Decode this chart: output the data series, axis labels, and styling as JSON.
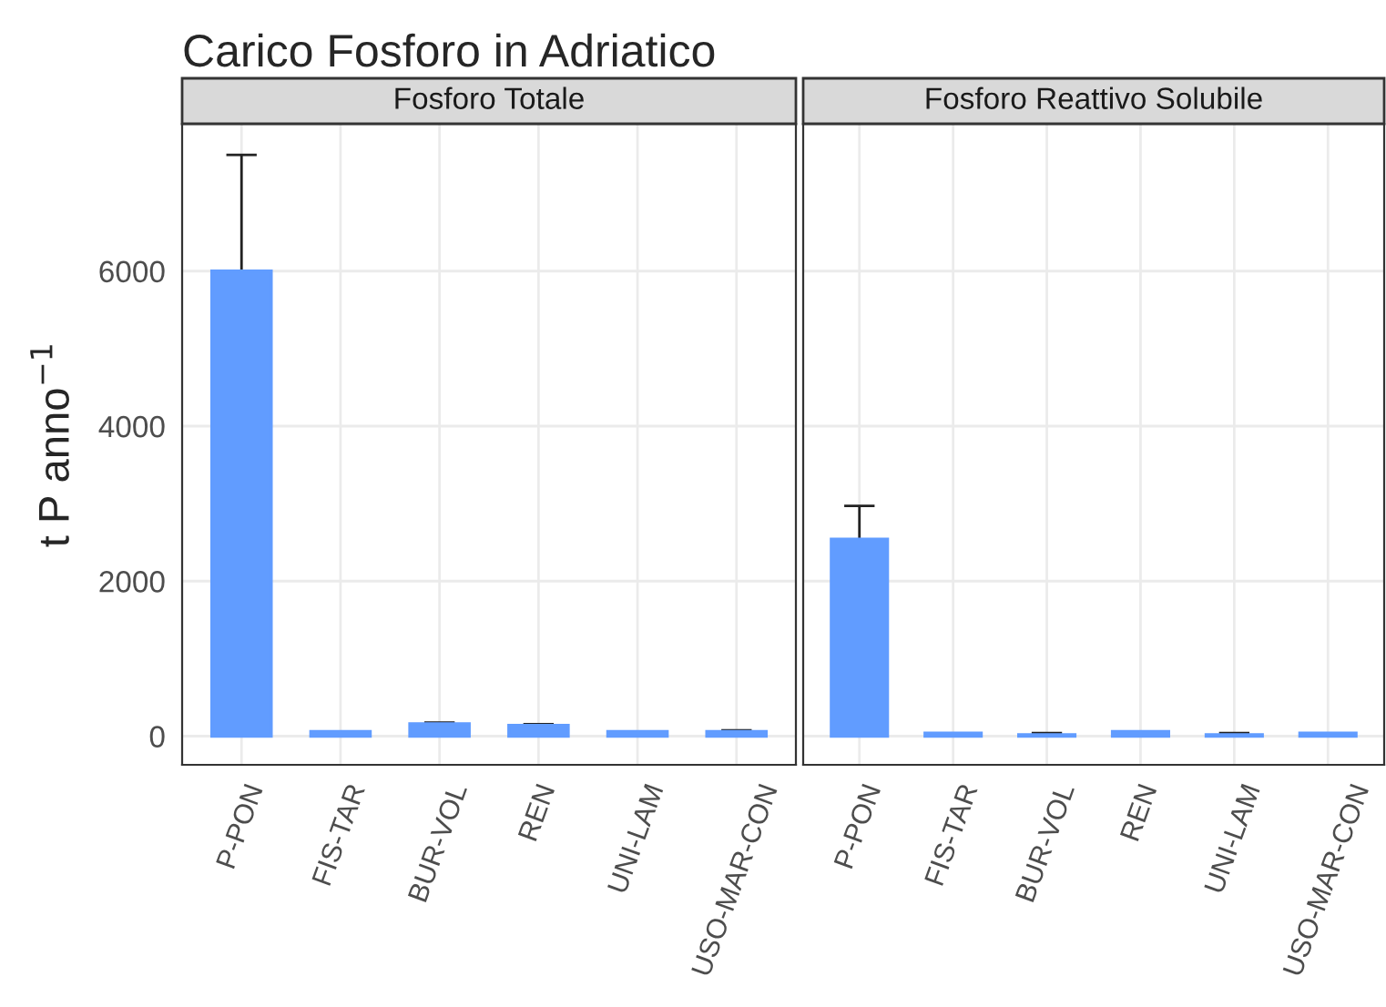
{
  "chart_data": [
    {
      "type": "bar",
      "title": "Carico Fosforo in Adriatico",
      "subtitle": "Fosforo Totale",
      "ylabel": "t P anno$^{−1}$",
      "categories": [
        "P-PON",
        "FIS-TAR",
        "BUR-VOL",
        "REN",
        "UNI-LAM",
        "USO-MAR-CON"
      ],
      "values": [
        6000,
        60,
        160,
        140,
        60,
        60
      ],
      "errors": [
        1500,
        null,
        15,
        15,
        null,
        15
      ],
      "color": "#619cff",
      "ylim": [
        -370,
        7900
      ],
      "yticks": [
        0,
        2000,
        4000,
        6000
      ],
      "grid": true
    },
    {
      "type": "bar",
      "subtitle": "Fosforo Reattivo Solubile",
      "categories": [
        "P-PON",
        "FIS-TAR",
        "BUR-VOL",
        "REN",
        "UNI-LAM",
        "USO-MAR-CON"
      ],
      "values": [
        2540,
        40,
        20,
        60,
        20,
        40
      ],
      "errors": [
        430,
        null,
        20,
        null,
        20,
        null
      ],
      "color": "#619cff",
      "ylim": [
        -370,
        7900
      ],
      "yticks": [
        0,
        2000,
        4000,
        6000
      ],
      "grid": true,
      "tick_labels": "x"
    }
  ]
}
